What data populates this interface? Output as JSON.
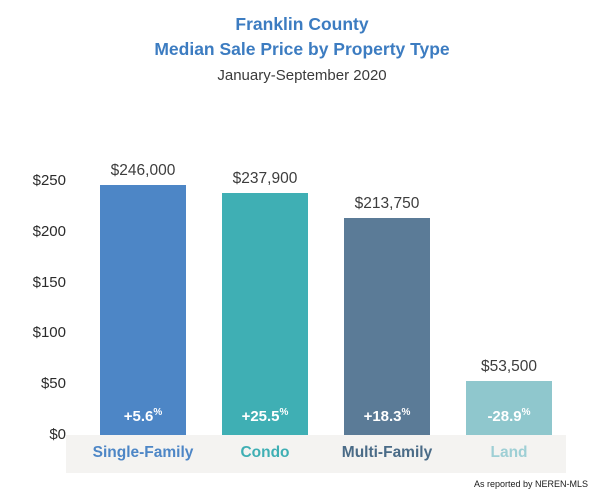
{
  "header": {
    "title_line1": "Franklin County",
    "title_line2": "Median Sale Price by Property Type",
    "subtitle": "January-September 2020"
  },
  "footer": {
    "attribution": "As reported by NEREN-MLS"
  },
  "chart_data": {
    "type": "bar",
    "title": "Franklin County Median Sale Price by Property Type, January-September 2020",
    "categories": [
      "Single-Family",
      "Condo",
      "Multi-Family",
      "Land"
    ],
    "values": [
      246000,
      237900,
      213750,
      53500
    ],
    "value_labels": [
      "$246,000",
      "$237,900",
      "$213,750",
      "$53,500"
    ],
    "pct_changes": [
      "+5.6",
      "+25.5",
      "+18.3",
      "-28.9"
    ],
    "percent_symbol": "%",
    "bar_colors": [
      "#4d86c6",
      "#3fafb4",
      "#5b7b97",
      "#8fc7cd"
    ],
    "category_label_colors": [
      "#4d86c6",
      "#3fafb4",
      "#4a6b87",
      "#9ecfd5"
    ],
    "y_ticks": [
      "$0",
      "$50",
      "$100",
      "$150",
      "$200",
      "$250"
    ],
    "ylim": [
      0,
      250000
    ],
    "xlabel": "",
    "ylabel": "",
    "grid": false,
    "legend": false
  }
}
